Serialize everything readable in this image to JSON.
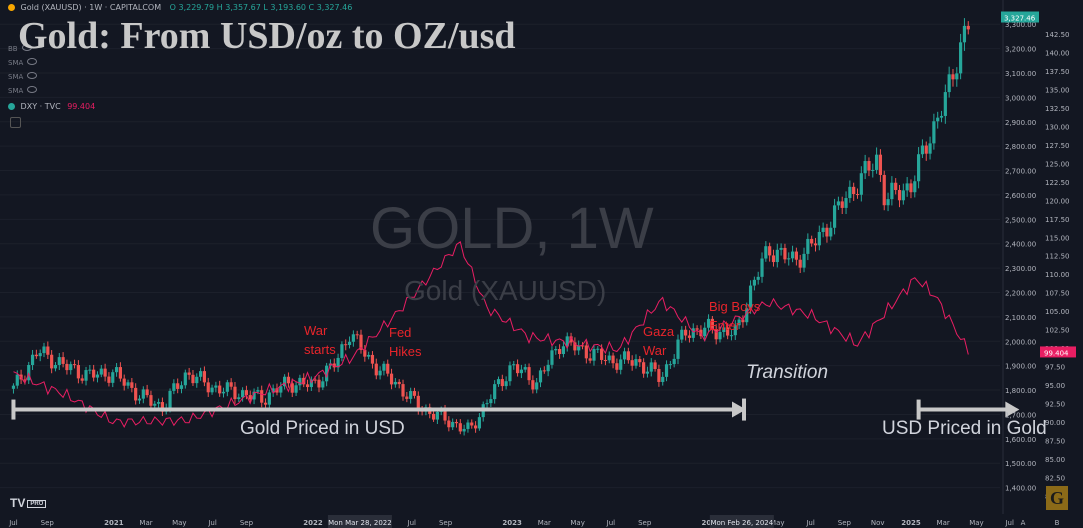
{
  "header": {
    "symbol": "Gold (XAUUSD) · 1W · CAPITALCOM",
    "ohlc": "O 3,229.79 H 3,357.67 L 3,193.60 C 3,327.46"
  },
  "indicators": [
    "BB",
    "SMA",
    "SMA",
    "SMA"
  ],
  "dxy": {
    "label": "DXY · TVC",
    "value": "99.404"
  },
  "title": "Gold: From USD/oz  to OZ/usd",
  "watermark": {
    "main": "GOLD, 1W",
    "sub": "Gold (XAUUSD)"
  },
  "annotations": {
    "war": "War\nstarts",
    "fed": "Fed\nHikes",
    "gaza": "Gaza\nWar",
    "bigboys": "Big Boys\nEnter",
    "transition": "Transition",
    "gold_in_usd": "Gold Priced in USD",
    "usd_in_gold": "USD Priced in Gold"
  },
  "branding": {
    "tv": "TV",
    "pro": "PRO",
    "g": "G"
  },
  "colors": {
    "up": "#26a69a",
    "down": "#ef5350",
    "dxy": "#e91e63",
    "bg": "#131722",
    "arrow": "#c8c8c8"
  },
  "chart_data": {
    "type": "candlestick",
    "gold": {
      "x": [
        "2020-07-01",
        "2020-08-15",
        "2020-10-01",
        "2020-11-15",
        "2021-01-01",
        "2021-02-15",
        "2021-03-31",
        "2021-05-15",
        "2021-07-01",
        "2021-08-15",
        "2021-10-01",
        "2021-11-15",
        "2022-01-01",
        "2022-02-15",
        "2022-03-08",
        "2022-04-15",
        "2022-06-01",
        "2022-07-15",
        "2022-09-01",
        "2022-10-15",
        "2022-11-15",
        "2023-01-01",
        "2023-02-15",
        "2023-04-01",
        "2023-05-15",
        "2023-07-01",
        "2023-08-15",
        "2023-10-01",
        "2023-11-15",
        "2024-01-01",
        "2024-02-15",
        "2024-03-15",
        "2024-04-15",
        "2024-06-01",
        "2024-07-15",
        "2024-09-01",
        "2024-10-31",
        "2024-11-15",
        "2025-01-01",
        "2025-02-15",
        "2025-03-15",
        "2025-04-05",
        "2025-04-20"
      ],
      "close": [
        1805,
        1960,
        1900,
        1860,
        1870,
        1780,
        1730,
        1870,
        1810,
        1790,
        1765,
        1830,
        1820,
        1920,
        2040,
        1920,
        1830,
        1730,
        1680,
        1630,
        1750,
        1900,
        1830,
        2000,
        1960,
        1920,
        1920,
        1850,
        2040,
        2050,
        2030,
        2220,
        2380,
        2330,
        2420,
        2580,
        2750,
        2580,
        2640,
        2900,
        3050,
        3250,
        3327.46
      ]
    },
    "dxy": {
      "x": [
        "2020-07-01",
        "2020-10-01",
        "2021-01-01",
        "2021-05-15",
        "2021-10-01",
        "2022-01-01",
        "2022-03-15",
        "2022-06-01",
        "2022-09-27",
        "2022-11-15",
        "2023-02-01",
        "2023-07-15",
        "2023-10-01",
        "2023-12-15",
        "2024-04-15",
        "2024-07-01",
        "2024-09-25",
        "2025-01-10",
        "2025-02-15",
        "2025-04-18"
      ],
      "close": [
        96.5,
        93.8,
        90.0,
        90.2,
        94.0,
        96.0,
        98.8,
        104.5,
        114.2,
        105.5,
        101.5,
        99.8,
        106.5,
        101.5,
        106.2,
        104.5,
        100.5,
        109.5,
        107.0,
        99.404
      ]
    },
    "gold_ticks": [
      "3,300.00",
      "3,200.00",
      "3,100.00",
      "3,000.00",
      "2,900.00",
      "2,800.00",
      "2,700.00",
      "2,600.00",
      "2,500.00",
      "2,400.00",
      "2,300.00",
      "2,200.00",
      "2,100.00",
      "2,000.00",
      "1,900.00",
      "1,800.00",
      "1,700.00",
      "1,600.00",
      "1,500.00",
      "1,400.00"
    ],
    "dxy_ticks": [
      "142.50",
      "140.00",
      "137.50",
      "135.00",
      "132.50",
      "130.00",
      "127.50",
      "125.00",
      "122.50",
      "120.00",
      "117.50",
      "115.00",
      "112.50",
      "110.00",
      "107.50",
      "105.00",
      "102.50",
      "100.00",
      "97.50",
      "95.00",
      "92.50",
      "90.00",
      "87.50",
      "85.00",
      "82.50",
      "80.00"
    ],
    "x_ticks": [
      "Jul",
      "Sep",
      "2021",
      "Mar",
      "May",
      "Jul",
      "Sep",
      "2022",
      "Mar",
      "May",
      "Jul",
      "Sep",
      "2023",
      "Mar",
      "May",
      "Jul",
      "Sep",
      "2024",
      "Mar",
      "May",
      "Jul",
      "Sep",
      "Nov",
      "2025",
      "Mar",
      "May",
      "Jul",
      "A",
      "B"
    ],
    "x_highlights": [
      "Mon Mar 28, 2022",
      "Mon Feb 26, 2024"
    ],
    "last_price": "3,327.46",
    "last_dxy": "99.404",
    "gold_ylim": [
      1300,
      3350
    ],
    "dxy_ylim": [
      77.8,
      145.5
    ],
    "arrows": [
      {
        "direction": "right",
        "from_date": "2020-07-01",
        "to_date": "2024-03-01",
        "level": 1720
      },
      {
        "direction": "right",
        "from_date": "2025-01-15",
        "to_date": "2025-07-15",
        "level": 1720
      }
    ]
  }
}
